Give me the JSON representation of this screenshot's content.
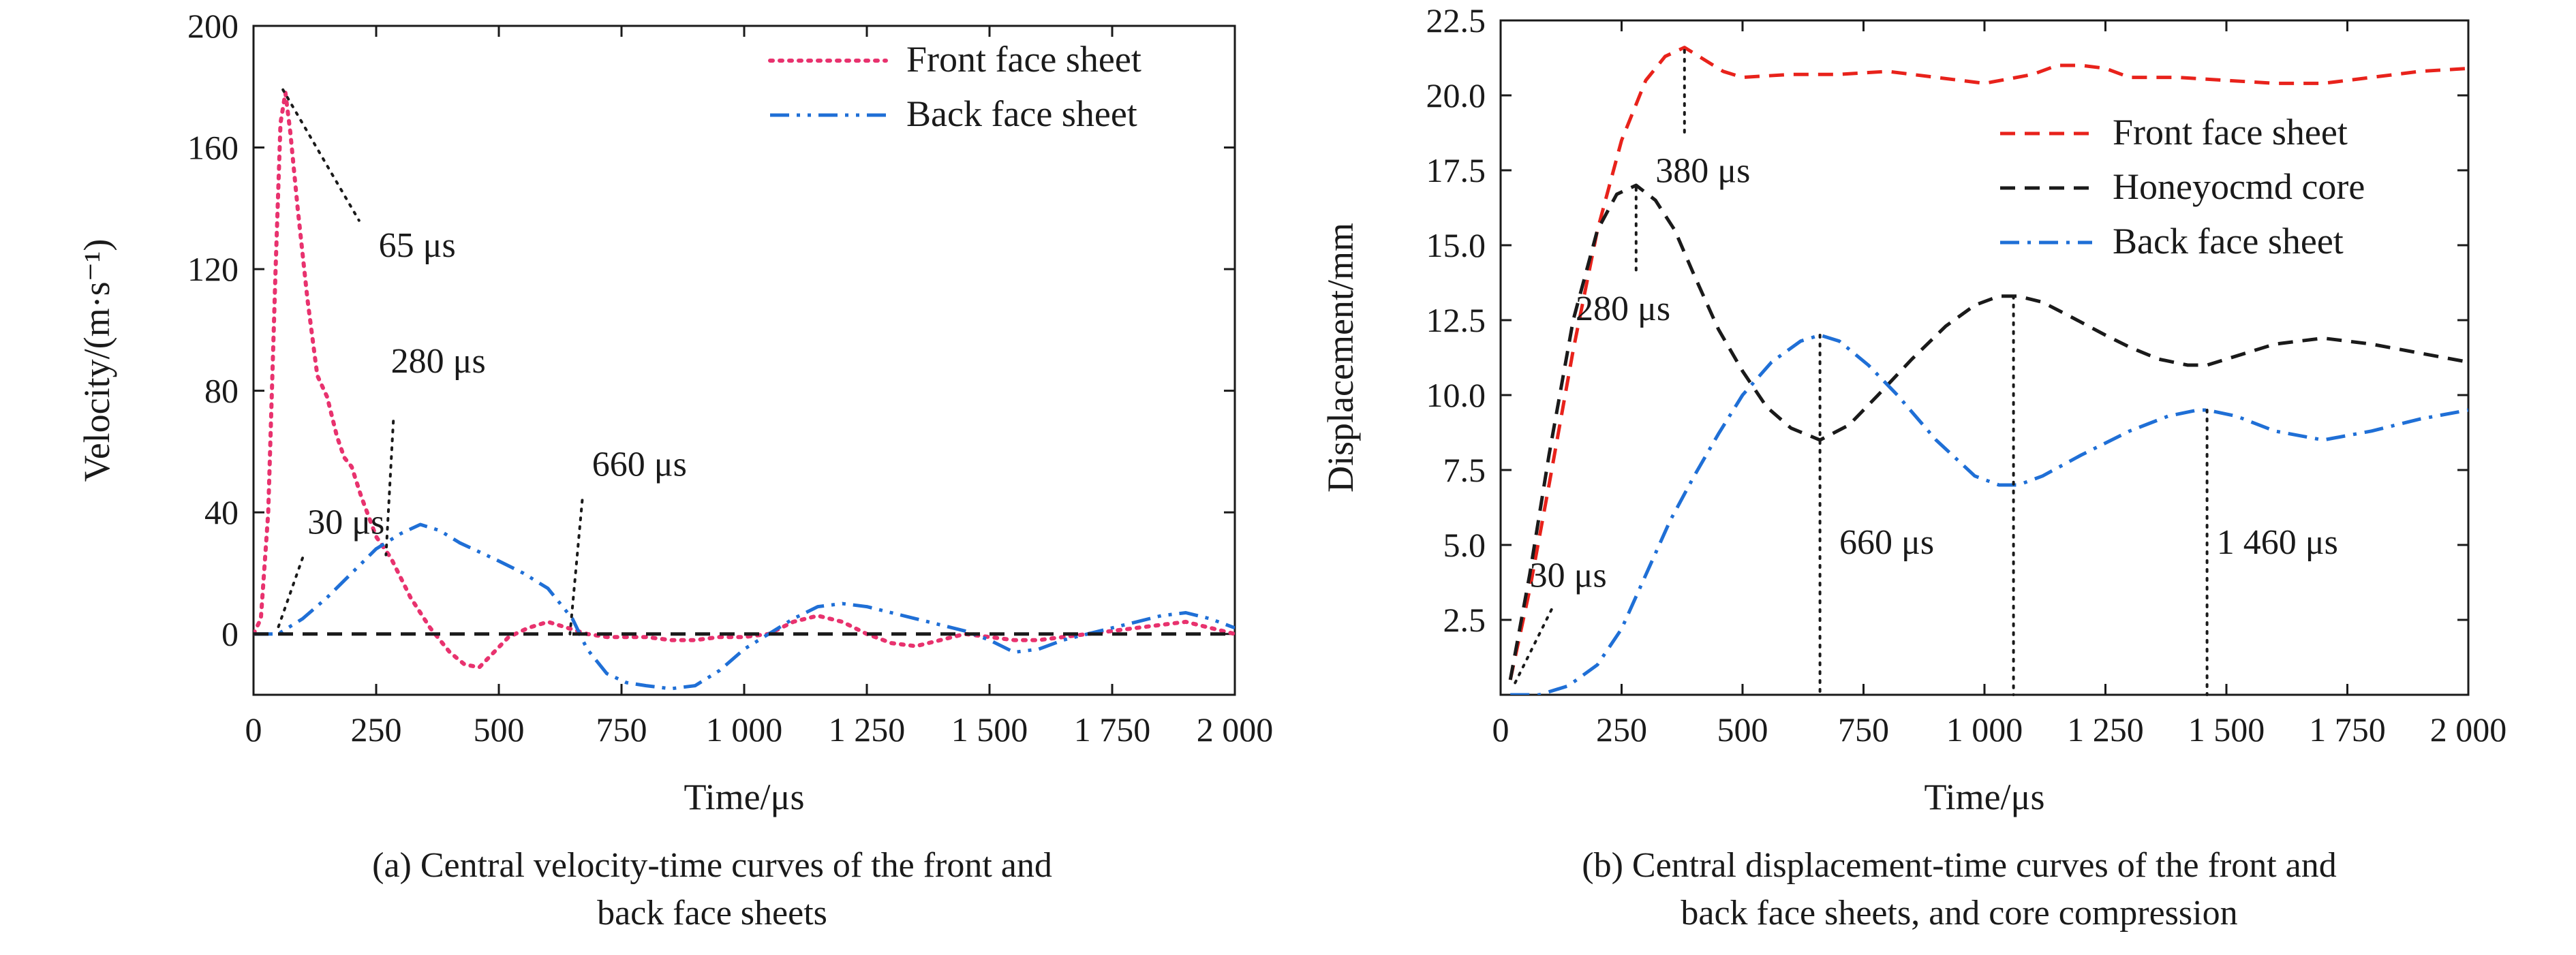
{
  "chart_data": [
    {
      "type": "line",
      "xlabel": "Time/μs",
      "ylabel": "Velocity/(m·s⁻¹)",
      "xlim": [
        0,
        2000
      ],
      "ylim": [
        -20,
        200
      ],
      "x_ticks": [
        {
          "value": 0,
          "label": "0"
        },
        {
          "value": 250,
          "label": "250"
        },
        {
          "value": 500,
          "label": "500"
        },
        {
          "value": 750,
          "label": "750"
        },
        {
          "value": 1000,
          "label": "1 000"
        },
        {
          "value": 1250,
          "label": "1 250"
        },
        {
          "value": 1500,
          "label": "1 500"
        },
        {
          "value": 1750,
          "label": "1 750"
        },
        {
          "value": 2000,
          "label": "2 000"
        }
      ],
      "y_ticks": [
        {
          "value": 0,
          "label": "0"
        },
        {
          "value": 40,
          "label": "40"
        },
        {
          "value": 80,
          "label": "80"
        },
        {
          "value": 120,
          "label": "120"
        },
        {
          "value": 160,
          "label": "160"
        },
        {
          "value": 200,
          "label": "200"
        }
      ],
      "legend_position": "top-right",
      "caption_lines": [
        "(a) Central velocity-time curves of the front and",
        "back face sheets"
      ],
      "series": [
        {
          "name": "Front face sheet",
          "color": "#e8326e",
          "style": "dotted",
          "x": [
            0,
            15,
            30,
            45,
            55,
            65,
            75,
            90,
            110,
            130,
            150,
            170,
            185,
            200,
            220,
            250,
            280,
            320,
            360,
            400,
            430,
            460,
            490,
            520,
            560,
            600,
            640,
            680,
            720,
            760,
            800,
            850,
            900,
            950,
            1000,
            1050,
            1100,
            1150,
            1200,
            1250,
            1300,
            1350,
            1400,
            1450,
            1500,
            1550,
            1600,
            1650,
            1700,
            1750,
            1800,
            1850,
            1900,
            1950,
            2000
          ],
          "y": [
            0,
            5,
            40,
            120,
            168,
            178,
            165,
            140,
            110,
            85,
            78,
            65,
            58,
            55,
            45,
            32,
            25,
            12,
            2,
            -6,
            -10,
            -11,
            -6,
            -1,
            2,
            4,
            2,
            0,
            -1,
            -1,
            -1,
            -2,
            -2,
            -1,
            -1,
            0,
            4,
            6,
            4,
            0,
            -3,
            -4,
            -2,
            0,
            -1,
            -2,
            -2,
            -1,
            0,
            1,
            2,
            3,
            4,
            2,
            0
          ]
        },
        {
          "name": "Back face sheet",
          "color": "#1f6fd6",
          "style": "dash-dot-dot",
          "x": [
            0,
            50,
            100,
            150,
            200,
            250,
            300,
            340,
            380,
            420,
            460,
            500,
            550,
            600,
            650,
            680,
            720,
            760,
            800,
            850,
            900,
            950,
            1000,
            1050,
            1100,
            1150,
            1200,
            1250,
            1300,
            1350,
            1400,
            1450,
            1500,
            1550,
            1600,
            1650,
            1700,
            1750,
            1800,
            1850,
            1900,
            1950,
            2000
          ],
          "y": [
            0,
            0,
            5,
            12,
            20,
            28,
            33,
            36,
            34,
            30,
            27,
            24,
            20,
            15,
            5,
            -5,
            -13,
            -16,
            -17,
            -18,
            -17,
            -12,
            -5,
            0,
            5,
            9,
            10,
            9,
            7,
            5,
            3,
            1,
            -2,
            -6,
            -5,
            -2,
            0,
            2,
            4,
            6,
            7,
            5,
            2
          ]
        },
        {
          "name": "",
          "color": "#1a1a1a",
          "style": "dashed",
          "x": [
            0,
            2000
          ],
          "y": [
            0,
            0
          ]
        }
      ],
      "annotations": [
        {
          "text": "65 μs",
          "tx": 255,
          "ty": 124,
          "lx1": 60,
          "ly1": 179,
          "lx2": 215,
          "ly2": 136
        },
        {
          "text": "280 μs",
          "tx": 280,
          "ty": 86,
          "lx1": 285,
          "ly1": 70,
          "lx2": 270,
          "ly2": 26
        },
        {
          "text": "660 μs",
          "tx": 690,
          "ty": 52,
          "lx1": 670,
          "ly1": 44,
          "lx2": 645,
          "ly2": 0
        },
        {
          "text": "30 μs",
          "tx": 110,
          "ty": 33,
          "lx1": 100,
          "ly1": 25,
          "lx2": 50,
          "ly2": 2
        }
      ]
    },
    {
      "type": "line",
      "xlabel": "Time/μs",
      "ylabel": "Displacement/mm",
      "xlim": [
        0,
        2000
      ],
      "ylim": [
        0,
        22.5
      ],
      "x_ticks": [
        {
          "value": 0,
          "label": "0"
        },
        {
          "value": 250,
          "label": "250"
        },
        {
          "value": 500,
          "label": "500"
        },
        {
          "value": 750,
          "label": "750"
        },
        {
          "value": 1000,
          "label": "1 000"
        },
        {
          "value": 1250,
          "label": "1 250"
        },
        {
          "value": 1500,
          "label": "1 500"
        },
        {
          "value": 1750,
          "label": "1 750"
        },
        {
          "value": 2000,
          "label": "2 000"
        }
      ],
      "y_ticks": [
        {
          "value": 2.5,
          "label": "2.5"
        },
        {
          "value": 5.0,
          "label": "5.0"
        },
        {
          "value": 7.5,
          "label": "7.5"
        },
        {
          "value": 10.0,
          "label": "10.0"
        },
        {
          "value": 12.5,
          "label": "12.5"
        },
        {
          "value": 15.0,
          "label": "15.0"
        },
        {
          "value": 17.5,
          "label": "17.5"
        },
        {
          "value": 20.0,
          "label": "20.0"
        },
        {
          "value": 22.5,
          "label": "22.5"
        }
      ],
      "legend_position": "top-right",
      "caption_lines": [
        "(b) Central displacement-time curves of the front and",
        "back face sheets, and core compression"
      ],
      "series": [
        {
          "name": "Front face sheet",
          "color": "#e8221b",
          "style": "dashed",
          "x": [
            20,
            60,
            100,
            150,
            200,
            250,
            300,
            340,
            380,
            420,
            460,
            500,
            600,
            700,
            800,
            900,
            1000,
            1100,
            1150,
            1200,
            1250,
            1300,
            1400,
            1500,
            1600,
            1700,
            1800,
            1900,
            2000
          ],
          "y": [
            0.5,
            3.5,
            7.0,
            11.5,
            15.5,
            18.5,
            20.5,
            21.3,
            21.6,
            21.2,
            20.8,
            20.6,
            20.7,
            20.7,
            20.8,
            20.6,
            20.4,
            20.7,
            21.0,
            21.0,
            20.9,
            20.6,
            20.6,
            20.5,
            20.4,
            20.4,
            20.6,
            20.8,
            20.9
          ]
        },
        {
          "name": "Honeyocmd core",
          "color": "#1a1a1a",
          "style": "dashed",
          "x": [
            20,
            60,
            100,
            150,
            200,
            240,
            280,
            320,
            360,
            400,
            450,
            500,
            550,
            600,
            660,
            720,
            780,
            850,
            920,
            980,
            1030,
            1070,
            1120,
            1180,
            1250,
            1300,
            1360,
            1420,
            1460,
            1520,
            1600,
            1700,
            1800,
            1900,
            2000
          ],
          "y": [
            0.5,
            4.0,
            8.0,
            12.5,
            15.5,
            16.7,
            17.0,
            16.5,
            15.5,
            14.0,
            12.2,
            10.8,
            9.6,
            8.9,
            8.5,
            9.0,
            10.0,
            11.2,
            12.3,
            13.0,
            13.3,
            13.3,
            13.1,
            12.6,
            12.0,
            11.6,
            11.2,
            11.0,
            11.0,
            11.3,
            11.7,
            11.9,
            11.7,
            11.4,
            11.1
          ]
        },
        {
          "name": "Back face sheet",
          "color": "#1f6fd6",
          "style": "dash-dot",
          "x": [
            20,
            80,
            140,
            200,
            250,
            300,
            350,
            400,
            450,
            500,
            560,
            620,
            660,
            700,
            760,
            820,
            900,
            980,
            1030,
            1070,
            1120,
            1200,
            1300,
            1380,
            1440,
            1460,
            1520,
            1600,
            1700,
            1800,
            1900,
            2000
          ],
          "y": [
            0.0,
            0.0,
            0.3,
            1.0,
            2.2,
            4.0,
            5.8,
            7.3,
            8.7,
            10.0,
            11.1,
            11.8,
            12.0,
            11.8,
            11.0,
            10.0,
            8.5,
            7.3,
            7.0,
            7.0,
            7.3,
            8.0,
            8.8,
            9.3,
            9.5,
            9.5,
            9.3,
            8.8,
            8.5,
            8.8,
            9.2,
            9.5
          ]
        }
      ],
      "annotations": [
        {
          "text": "380 μs",
          "tx": 320,
          "ty": 17.1,
          "lx1": 380,
          "ly1": 21.5,
          "lx2": 380,
          "ly2": 18.6
        },
        {
          "text": "280 μs",
          "tx": 155,
          "ty": 12.5,
          "lx1": 280,
          "ly1": 16.9,
          "lx2": 280,
          "ly2": 14.0
        },
        {
          "text": "30 μs",
          "tx": 60,
          "ty": 3.6,
          "lx1": 30,
          "ly1": 0.4,
          "lx2": 110,
          "ly2": 3.0
        },
        {
          "text": "660 μs",
          "tx": 700,
          "ty": 4.7,
          "lx1": 660,
          "ly1": 12.0,
          "lx2": 660,
          "ly2": 0
        },
        {
          "text": "",
          "tx": 0,
          "ty": 0,
          "lx1": 1060,
          "ly1": 13.3,
          "lx2": 1060,
          "ly2": 0
        },
        {
          "text": "1 460 μs",
          "tx": 1480,
          "ty": 4.7,
          "lx1": 1460,
          "ly1": 9.5,
          "lx2": 1460,
          "ly2": 0
        }
      ]
    }
  ]
}
